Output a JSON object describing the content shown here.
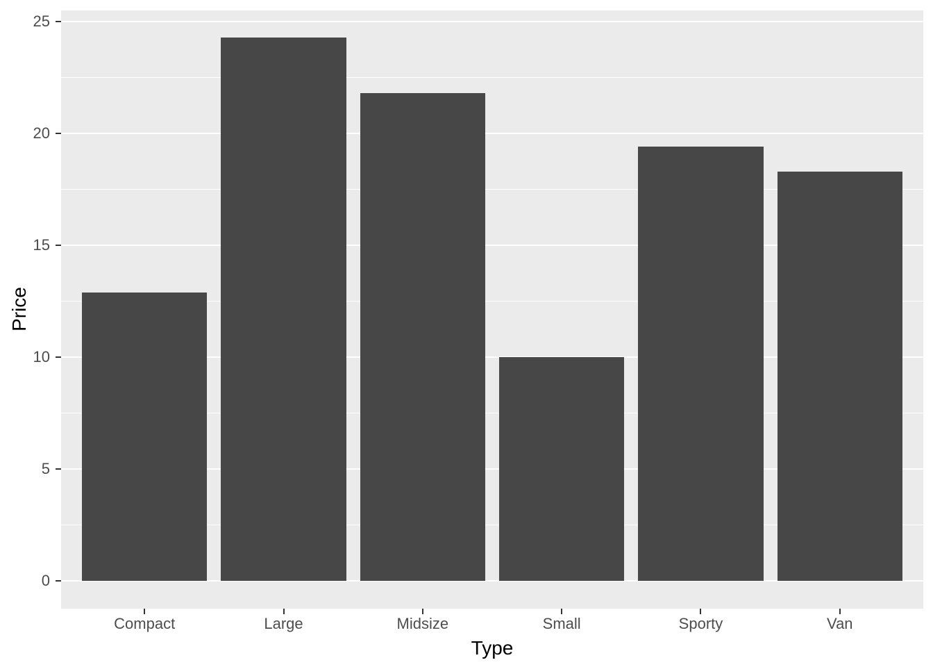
{
  "chart_data": {
    "type": "bar",
    "title": "",
    "xlabel": "Type",
    "ylabel": "Price",
    "categories": [
      "Compact",
      "Large",
      "Midsize",
      "Small",
      "Sporty",
      "Van"
    ],
    "values": [
      12.9,
      24.3,
      21.8,
      10.0,
      19.4,
      18.3
    ],
    "ylim": [
      0,
      25
    ],
    "yticks": [
      0,
      5,
      10,
      15,
      20,
      25
    ],
    "ytick_labels": [
      "0",
      "5",
      "10",
      "15",
      "20",
      "25"
    ],
    "minor_gridlines_at": [
      2.5,
      7.5,
      12.5,
      17.5,
      22.5
    ],
    "grid": "on",
    "legend_position": "none",
    "style": {
      "bar_fill": "#474747",
      "panel_background": "#EBEBEB",
      "gridline_color": "#FFFFFF",
      "tick_label_color": "#4D4D4D",
      "axis_title_color": "#000000",
      "tick_mark_color": "#333333",
      "outer_background": "#FFFFFF"
    }
  }
}
